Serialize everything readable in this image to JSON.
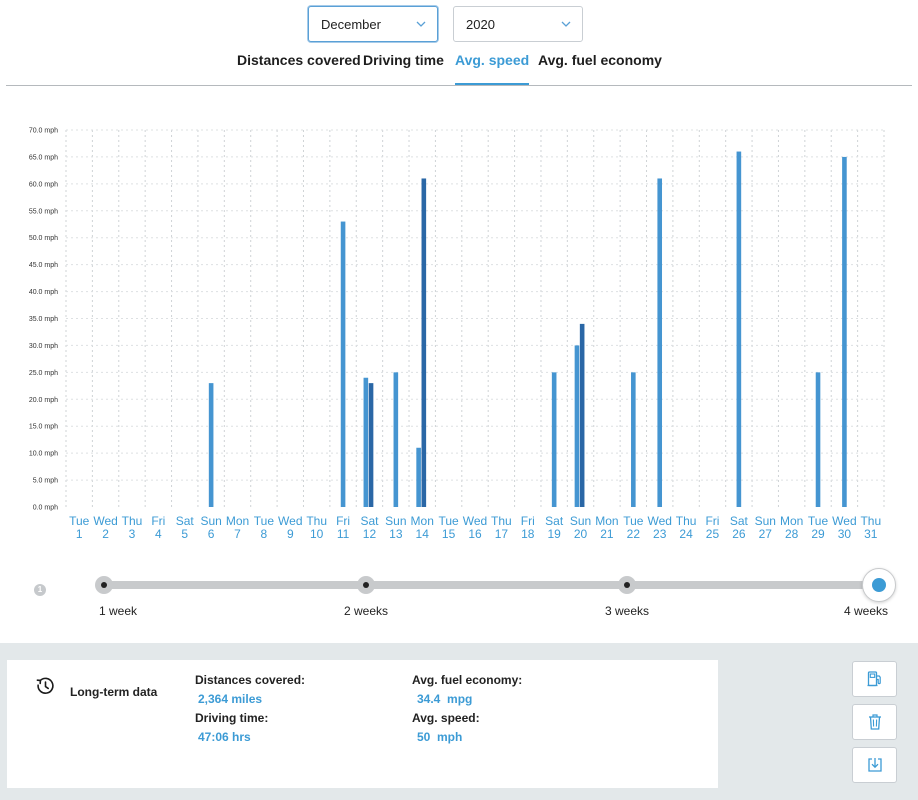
{
  "selectors": {
    "month": "December",
    "year": "2020"
  },
  "tabs": [
    {
      "label": "Distances covered",
      "active": false
    },
    {
      "label": "Driving time",
      "active": false
    },
    {
      "label": "Avg. speed",
      "active": true
    },
    {
      "label": "Avg. fuel economy",
      "active": false
    }
  ],
  "colors": {
    "accent": "#3c9bd5",
    "bar_primary": "#4595d1",
    "bar_secondary": "#2a67a6"
  },
  "chart_data": {
    "type": "bar",
    "title": "",
    "xlabel": "",
    "ylabel": "",
    "ylim": [
      0,
      70
    ],
    "y_ticks": [
      "0.0 mph",
      "5.0 mph",
      "10.0 mph",
      "15.0 mph",
      "20.0 mph",
      "25.0 mph",
      "30.0 mph",
      "35.0 mph",
      "40.0 mph",
      "45.0 mph",
      "50.0 mph",
      "55.0 mph",
      "60.0 mph",
      "65.0 mph",
      "70.0 mph"
    ],
    "grid": true,
    "categories": [
      {
        "dow": "Tue",
        "day": "1"
      },
      {
        "dow": "Wed",
        "day": "2"
      },
      {
        "dow": "Thu",
        "day": "3"
      },
      {
        "dow": "Fri",
        "day": "4"
      },
      {
        "dow": "Sat",
        "day": "5"
      },
      {
        "dow": "Sun",
        "day": "6"
      },
      {
        "dow": "Mon",
        "day": "7"
      },
      {
        "dow": "Tue",
        "day": "8"
      },
      {
        "dow": "Wed",
        "day": "9"
      },
      {
        "dow": "Thu",
        "day": "10"
      },
      {
        "dow": "Fri",
        "day": "11"
      },
      {
        "dow": "Sat",
        "day": "12"
      },
      {
        "dow": "Sun",
        "day": "13"
      },
      {
        "dow": "Mon",
        "day": "14"
      },
      {
        "dow": "Tue",
        "day": "15"
      },
      {
        "dow": "Wed",
        "day": "16"
      },
      {
        "dow": "Thu",
        "day": "17"
      },
      {
        "dow": "Fri",
        "day": "18"
      },
      {
        "dow": "Sat",
        "day": "19"
      },
      {
        "dow": "Sun",
        "day": "20"
      },
      {
        "dow": "Mon",
        "day": "21"
      },
      {
        "dow": "Tue",
        "day": "22"
      },
      {
        "dow": "Wed",
        "day": "23"
      },
      {
        "dow": "Thu",
        "day": "24"
      },
      {
        "dow": "Fri",
        "day": "25"
      },
      {
        "dow": "Sat",
        "day": "26"
      },
      {
        "dow": "Sun",
        "day": "27"
      },
      {
        "dow": "Mon",
        "day": "28"
      },
      {
        "dow": "Tue",
        "day": "29"
      },
      {
        "dow": "Wed",
        "day": "30"
      },
      {
        "dow": "Thu",
        "day": "31"
      }
    ],
    "bars": [
      {
        "day": 6,
        "value": 23,
        "tone": "primary"
      },
      {
        "day": 11,
        "value": 53,
        "tone": "primary"
      },
      {
        "day": 12,
        "value": 24,
        "tone": "primary"
      },
      {
        "day": 12,
        "value": 23,
        "tone": "secondary"
      },
      {
        "day": 13,
        "value": 25,
        "tone": "primary"
      },
      {
        "day": 14,
        "value": 11,
        "tone": "primary"
      },
      {
        "day": 14,
        "value": 61,
        "tone": "secondary"
      },
      {
        "day": 19,
        "value": 25,
        "tone": "primary"
      },
      {
        "day": 20,
        "value": 30,
        "tone": "primary"
      },
      {
        "day": 20,
        "value": 34,
        "tone": "secondary"
      },
      {
        "day": 22,
        "value": 25,
        "tone": "primary"
      },
      {
        "day": 23,
        "value": 61,
        "tone": "primary"
      },
      {
        "day": 26,
        "value": 66,
        "tone": "primary"
      },
      {
        "day": 29,
        "value": 25,
        "tone": "primary"
      },
      {
        "day": 30,
        "value": 65,
        "tone": "primary"
      }
    ]
  },
  "slider": {
    "step_number": "1",
    "stops": [
      "1 week",
      "2 weeks",
      "3 weeks",
      "4 weeks"
    ],
    "selected": "4 weeks"
  },
  "summary": {
    "title": "Long-term data",
    "distances_label": "Distances covered:",
    "distances_value": "2,364 miles",
    "driving_time_label": "Driving time:",
    "driving_time_value": "47:06 hrs",
    "fuel_economy_label": "Avg. fuel economy:",
    "fuel_economy_value": "34.4  mpg",
    "speed_label": "Avg. speed:",
    "speed_value": "50  mph"
  },
  "side_buttons": {
    "fuel_icon": "fuel-pump-icon",
    "delete_icon": "trash-icon",
    "download_icon": "download-icon"
  }
}
